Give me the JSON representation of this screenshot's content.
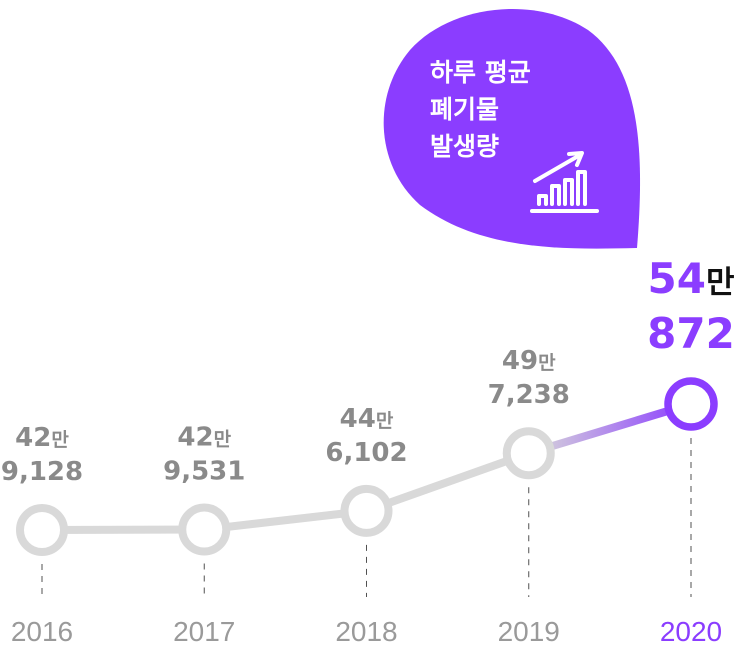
{
  "title_lines": [
    "하루 평균",
    "폐기물",
    "발생량"
  ],
  "colors": {
    "accent": "#8b3dff",
    "line": "#d9d9d9",
    "value_text": "#8a8a8a",
    "year_text": "#9a9a9a",
    "unit_highlight": "#111111"
  },
  "icon": "rising-bar-chart-icon",
  "chart_data": {
    "type": "line",
    "x": [
      "2016",
      "2017",
      "2018",
      "2019",
      "2020"
    ],
    "values": [
      429128,
      429531,
      446102,
      497238,
      540872
    ],
    "labels": [
      {
        "top": "42",
        "unit": "만",
        "bottom": "9,128"
      },
      {
        "top": "42",
        "unit": "만",
        "bottom": "9,531"
      },
      {
        "top": "44",
        "unit": "만",
        "bottom": "6,102"
      },
      {
        "top": "49",
        "unit": "만",
        "bottom": "7,238"
      },
      {
        "top": "54",
        "unit": "만",
        "bottom": "872"
      }
    ],
    "highlight_index": 4,
    "grid": false,
    "legend": "none"
  }
}
